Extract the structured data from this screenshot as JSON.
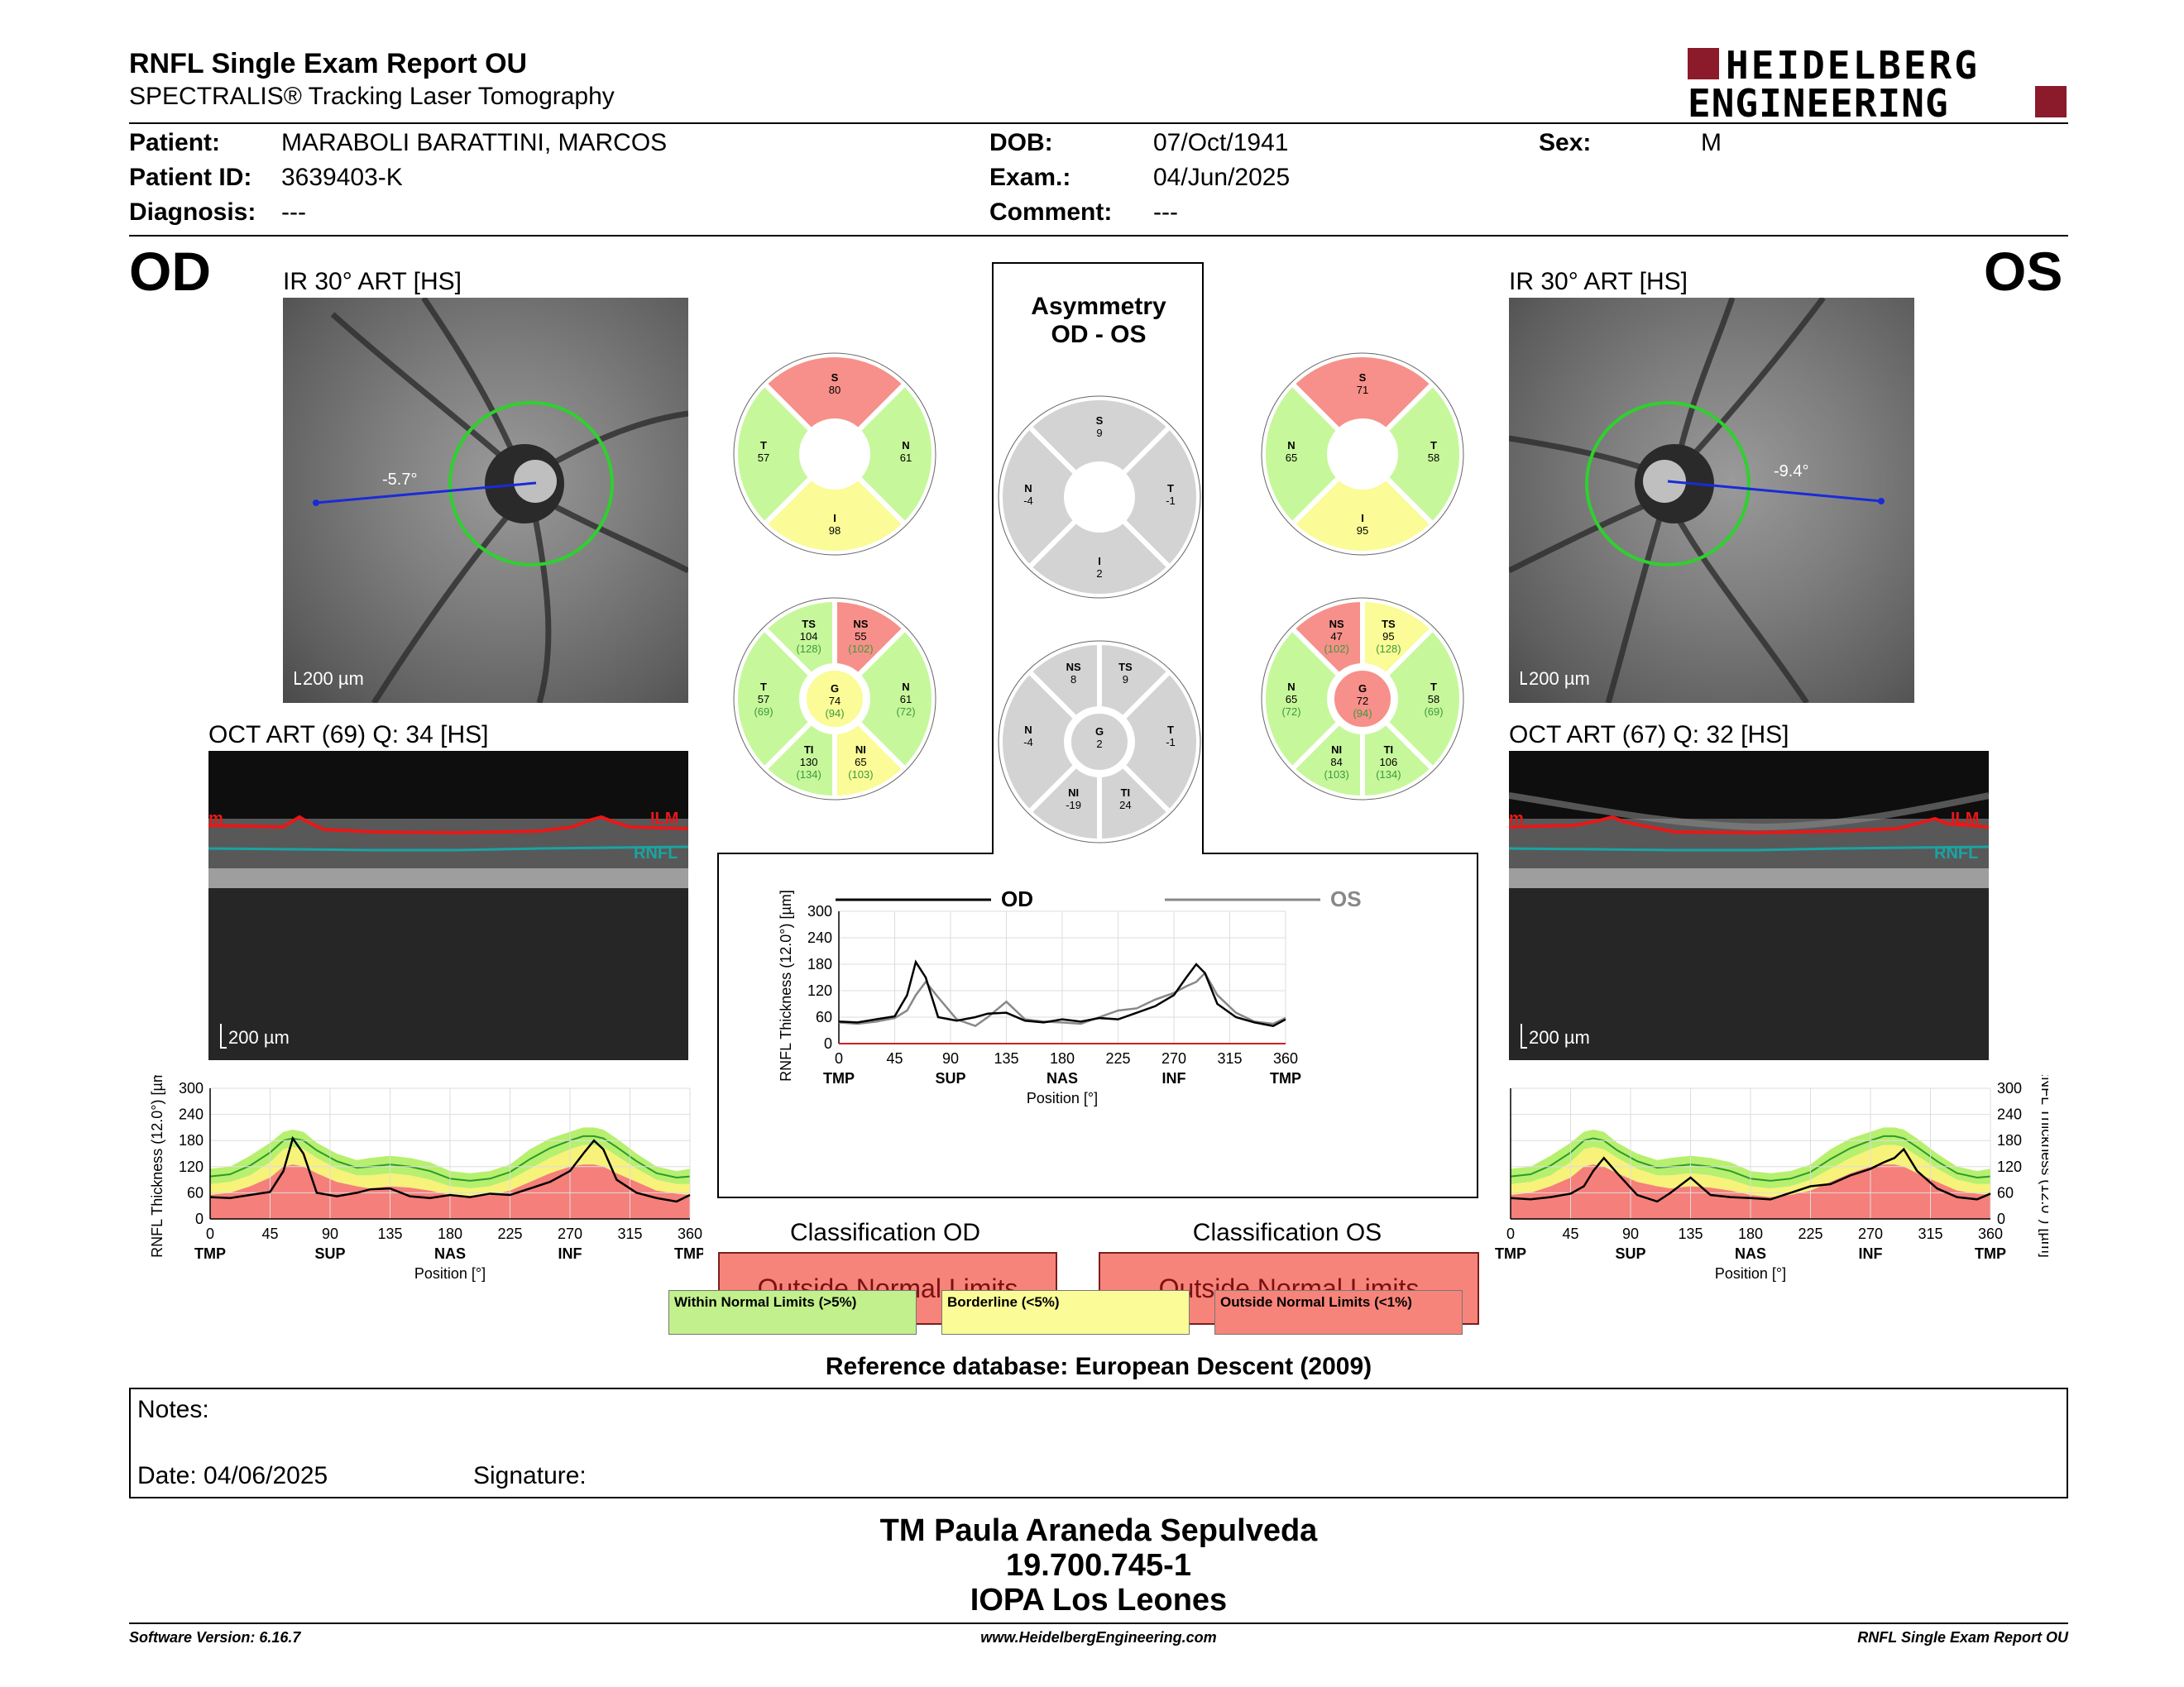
{
  "header": {
    "title": "RNFL Single Exam Report OU",
    "subtitle": "SPECTRALIS® Tracking Laser Tomography",
    "logo_line1": "HEIDELBERG",
    "logo_line2": "ENGINEERING"
  },
  "patient": {
    "patient_label": "Patient:",
    "patient_value": "MARABOLI  BARATTINI, MARCOS",
    "id_label": "Patient ID:",
    "id_value": "3639403-K",
    "diag_label": "Diagnosis:",
    "diag_value": "---",
    "dob_label": "DOB:",
    "dob_value": "07/Oct/1941",
    "exam_label": "Exam.:",
    "exam_value": "04/Jun/2025",
    "comment_label": "Comment:",
    "comment_value": "---",
    "sex_label": "Sex:",
    "sex_value": "M"
  },
  "od": {
    "eye": "OD",
    "ir_label": "IR 30° ART [HS]",
    "angle": "-5.7°",
    "scale": "200 µm",
    "oct_label": "OCT ART (69) Q: 34 [HS]",
    "oct_scale": "200 µm",
    "ilm": "ILM",
    "ilm_partial": "m",
    "rnfl": "RNFL"
  },
  "os": {
    "eye": "OS",
    "ir_label": "IR 30° ART [HS]",
    "angle": "-9.4°",
    "scale": "200 µm",
    "oct_label": "OCT ART (67) Q: 32 [HS]",
    "oct_scale": "200 µm",
    "ilm": "ILM",
    "ilm_partial": "m",
    "rnfl": "RNFL"
  },
  "asymmetry": {
    "title_line1": "Asymmetry",
    "title_line2": "OD - OS"
  },
  "sectors4": {
    "od": {
      "S": "80",
      "N": "61",
      "I": "98",
      "T": "57"
    },
    "os": {
      "S": "71",
      "N": "65",
      "I": "95",
      "T": "58"
    },
    "asym": {
      "S": "9",
      "N": "-4",
      "I": "2",
      "T": "-1"
    }
  },
  "sectors6": {
    "od": {
      "TS": "104",
      "TS_ref": "(128)",
      "NS": "55",
      "NS_ref": "(102)",
      "N": "61",
      "N_ref": "(72)",
      "NI": "65",
      "NI_ref": "(103)",
      "TI": "130",
      "TI_ref": "(134)",
      "T": "57",
      "T_ref": "(69)",
      "G": "74",
      "G_ref": "(94)"
    },
    "os": {
      "NS": "47",
      "NS_ref": "(102)",
      "TS": "95",
      "TS_ref": "(128)",
      "T": "58",
      "T_ref": "(69)",
      "TI": "106",
      "TI_ref": "(134)",
      "NI": "84",
      "NI_ref": "(103)",
      "N": "65",
      "N_ref": "(72)",
      "G": "72",
      "G_ref": "(94)"
    },
    "asym": {
      "NS": "8",
      "TS": "9",
      "T": "-1",
      "TI": "24",
      "NI": "-19",
      "N": "-4",
      "G": "2"
    }
  },
  "colors": {
    "green": "#c7f79b",
    "yellow": "#fbfb97",
    "red": "#f7908a",
    "gray": "#d3d3d3",
    "od_line": "#000000",
    "os_line": "#888888"
  },
  "plot": {
    "ylabel": "RNFL Thickness (12.0°) [µm]",
    "xlabel": "Position [°]",
    "yticks": [
      "0",
      "60",
      "120",
      "180",
      "240",
      "300"
    ],
    "xticks": [
      "0",
      "45",
      "90",
      "135",
      "180",
      "225",
      "270",
      "315",
      "360"
    ],
    "regions": [
      "TMP",
      "SUP",
      "NAS",
      "INF",
      "TMP"
    ],
    "od_legend": "OD",
    "os_legend": "OS"
  },
  "chart_data": {
    "type": "line",
    "xlabel": "Position [°]",
    "ylabel": "RNFL Thickness (12.0°) [µm]",
    "xlim": [
      0,
      360
    ],
    "ylim": [
      0,
      300
    ],
    "x": [
      0,
      15,
      30,
      45,
      55,
      62,
      70,
      80,
      95,
      110,
      120,
      135,
      150,
      165,
      180,
      195,
      210,
      225,
      240,
      255,
      270,
      280,
      288,
      295,
      305,
      320,
      335,
      350,
      360
    ],
    "series": [
      {
        "name": "OD",
        "values": [
          50,
          48,
          55,
          62,
          110,
          185,
          150,
          60,
          52,
          60,
          68,
          70,
          52,
          48,
          55,
          50,
          58,
          55,
          70,
          85,
          110,
          150,
          180,
          160,
          90,
          60,
          48,
          40,
          55
        ]
      },
      {
        "name": "OS",
        "values": [
          48,
          45,
          50,
          58,
          75,
          110,
          140,
          105,
          55,
          40,
          60,
          95,
          55,
          50,
          48,
          45,
          60,
          75,
          80,
          100,
          115,
          130,
          140,
          160,
          110,
          70,
          50,
          45,
          58
        ]
      }
    ],
    "norm_bands": {
      "outer_upper": [
        115,
        120,
        145,
        175,
        200,
        205,
        200,
        175,
        150,
        135,
        140,
        145,
        140,
        130,
        110,
        105,
        110,
        125,
        160,
        185,
        200,
        210,
        210,
        205,
        185,
        150,
        120,
        110,
        115
      ],
      "outer_lower": [
        80,
        85,
        100,
        130,
        160,
        165,
        160,
        140,
        115,
        100,
        100,
        105,
        100,
        90,
        75,
        70,
        75,
        90,
        115,
        140,
        160,
        170,
        170,
        165,
        145,
        115,
        90,
        80,
        80
      ],
      "border_lower": [
        55,
        60,
        75,
        95,
        120,
        125,
        120,
        105,
        85,
        75,
        70,
        75,
        72,
        65,
        55,
        50,
        55,
        65,
        85,
        105,
        120,
        125,
        125,
        120,
        105,
        85,
        65,
        58,
        55
      ]
    }
  },
  "classification": {
    "od_title": "Classification OD",
    "os_title": "Classification OS",
    "od_value": "Outside Normal Limits",
    "os_value": "Outside Normal Limits"
  },
  "legend": {
    "wnl": "Within Normal Limits (>5%)",
    "bl": "Borderline (<5%)",
    "onl": "Outside Normal Limits (<1%)"
  },
  "reference": "Reference database: European Descent (2009)",
  "notes": {
    "notes_label": "Notes:",
    "date_label": "Date: 04/06/2025",
    "signature_label": "Signature:"
  },
  "signature": {
    "name": "TM Paula Araneda Sepulveda",
    "id": "19.700.745-1",
    "org": "IOPA Los Leones"
  },
  "footer": {
    "left": "Software Version: 6.16.7",
    "center": "www.HeidelbergEngineering.com",
    "right": "RNFL Single Exam Report OU"
  }
}
